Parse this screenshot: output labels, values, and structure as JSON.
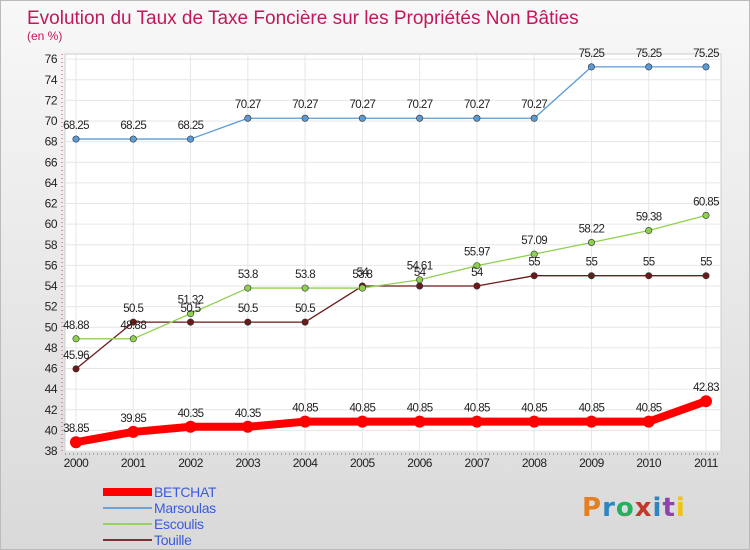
{
  "chart_data": {
    "type": "line",
    "title": "Evolution du Taux de Taxe Foncière sur les Propriétés Non Bâties",
    "subtitle": "(en %)",
    "x": [
      "2000",
      "2001",
      "2002",
      "2003",
      "2004",
      "2005",
      "2006",
      "2007",
      "2008",
      "2009",
      "2010",
      "2011"
    ],
    "yticks": [
      "38",
      "40",
      "42",
      "44",
      "46",
      "48",
      "50",
      "52",
      "54",
      "56",
      "58",
      "60",
      "62",
      "64",
      "66",
      "68",
      "70",
      "72",
      "74",
      "76"
    ],
    "ylim": [
      38,
      76.5
    ],
    "grid": true,
    "legend_position": "bottom-left",
    "series": [
      {
        "name": "BETCHAT",
        "color": "#ff0000",
        "values": [
          38.85,
          39.85,
          40.35,
          40.35,
          40.85,
          40.85,
          40.85,
          40.85,
          40.85,
          40.85,
          40.85,
          42.83
        ],
        "labels": [
          "38.85",
          "39.85",
          "40.35",
          "40.35",
          "40.85",
          "40.85",
          "40.85",
          "40.85",
          "40.85",
          "40.85",
          "40.85",
          "42.83"
        ]
      },
      {
        "name": "Marsoulas",
        "color": "#5b9bd5",
        "values": [
          68.25,
          68.25,
          68.25,
          70.27,
          70.27,
          70.27,
          70.27,
          70.27,
          70.27,
          75.25,
          75.25,
          75.25
        ],
        "labels": [
          "68.25",
          "68.25",
          "68.25",
          "70.27",
          "70.27",
          "70.27",
          "70.27",
          "70.27",
          "70.27",
          "75.25",
          "75.25",
          "75.25"
        ]
      },
      {
        "name": "Escoulis",
        "color": "#8fd14f",
        "values": [
          48.88,
          48.88,
          51.32,
          53.8,
          53.8,
          53.8,
          54.61,
          55.97,
          57.09,
          58.22,
          59.38,
          60.85
        ],
        "labels": [
          "48.88",
          "48.88",
          "51.32",
          "53.8",
          "53.8",
          "53.8",
          "54.61",
          "55.97",
          "57.09",
          "58.22",
          "59.38",
          "60.85"
        ]
      },
      {
        "name": "Touille",
        "color": "#6b1a1a",
        "values": [
          45.96,
          50.5,
          50.5,
          50.5,
          50.5,
          54,
          54,
          54,
          55,
          55,
          55,
          55
        ],
        "labels": [
          "45.96",
          "50.5",
          "50.5",
          "50.5",
          "50.5",
          "54",
          "54",
          "54",
          "55",
          "55",
          "55",
          "55"
        ]
      }
    ]
  },
  "brand": {
    "name": "Proxiti"
  }
}
